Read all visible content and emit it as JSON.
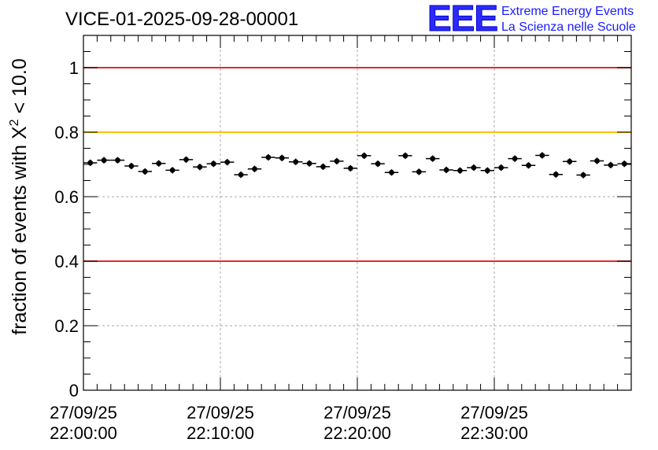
{
  "title": "VICE-01-2025-09-28-00001",
  "logo": {
    "mark": "EEE",
    "line1": "Extreme Energy Events",
    "line2": "La Scienza nelle Scuole"
  },
  "colors": {
    "red_line": "#e8262a",
    "yellow_line": "#ffc000",
    "points": "#000000",
    "grid": "#aaaaaa",
    "logo": "#2b2bff"
  },
  "chart_data": {
    "type": "scatter",
    "title": "VICE-01-2025-09-28-00001",
    "ylabel_prefix": "fraction of events with X",
    "ylabel_sup": "2",
    "ylabel_suffix": " < 10.0",
    "xlabel": "",
    "ylim": [
      0,
      1.1
    ],
    "y_ticks": [
      0,
      0.2,
      0.4,
      0.6,
      0.8,
      1
    ],
    "y_tick_labels": [
      "0",
      "0.2",
      "0.4",
      "0.6",
      "0.8",
      "1"
    ],
    "x_tick_labels": [
      [
        "27/09/25",
        "22:00:00"
      ],
      [
        "27/09/25",
        "22:10:00"
      ],
      [
        "27/09/25",
        "22:20:00"
      ],
      [
        "27/09/25",
        "22:30:00"
      ]
    ],
    "x_tick_minutes": [
      0,
      10,
      20,
      30
    ],
    "x_range_minutes": [
      0,
      40
    ],
    "grid": true,
    "reference_lines": [
      {
        "y": 1.0,
        "color": "#e8262a"
      },
      {
        "y": 0.8,
        "color": "#ffc000"
      },
      {
        "y": 0.4,
        "color": "#e8262a"
      }
    ],
    "series": [
      {
        "x_minutes": [
          0.5,
          1.5,
          2.5,
          3.5,
          4.5,
          5.5,
          6.5,
          7.5,
          8.5,
          9.5,
          10.5,
          11.5,
          12.5,
          13.5,
          14.5,
          15.5,
          16.5,
          17.5,
          18.5,
          19.5,
          20.5,
          21.5,
          22.5,
          23.5,
          24.5,
          25.5,
          26.5,
          27.5,
          28.5,
          29.5,
          30.5,
          31.5,
          32.5,
          33.5,
          34.5,
          35.5,
          36.5,
          37.5,
          38.5,
          39.5
        ],
        "values": [
          0.705,
          0.713,
          0.713,
          0.695,
          0.678,
          0.703,
          0.682,
          0.715,
          0.692,
          0.702,
          0.707,
          0.668,
          0.686,
          0.722,
          0.72,
          0.708,
          0.703,
          0.693,
          0.71,
          0.688,
          0.727,
          0.702,
          0.675,
          0.727,
          0.677,
          0.718,
          0.683,
          0.681,
          0.69,
          0.681,
          0.69,
          0.718,
          0.697,
          0.728,
          0.669,
          0.709,
          0.667,
          0.711,
          0.698,
          0.702
        ],
        "errors": [
          0.01,
          0.01,
          0.01,
          0.01,
          0.01,
          0.01,
          0.01,
          0.01,
          0.01,
          0.01,
          0.01,
          0.01,
          0.01,
          0.01,
          0.01,
          0.01,
          0.01,
          0.01,
          0.01,
          0.01,
          0.01,
          0.01,
          0.01,
          0.01,
          0.01,
          0.01,
          0.01,
          0.01,
          0.01,
          0.01,
          0.01,
          0.01,
          0.01,
          0.01,
          0.01,
          0.01,
          0.01,
          0.01,
          0.01,
          0.01
        ]
      }
    ]
  }
}
